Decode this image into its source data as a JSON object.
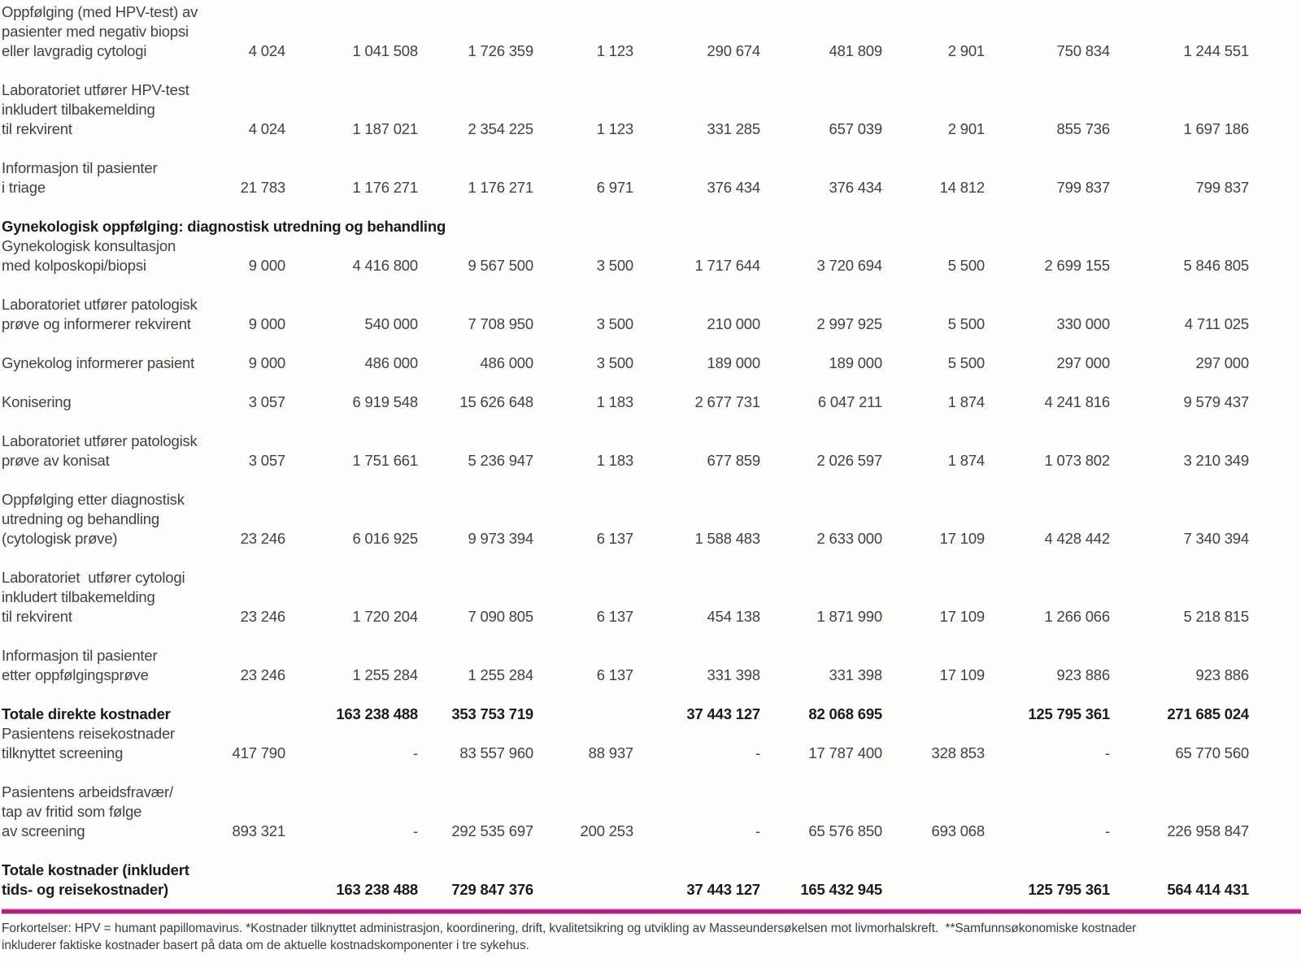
{
  "page": {
    "accent_color": "#ac1e80",
    "table": {
      "rows": [
        {
          "type": "data",
          "tight": true,
          "label": "Oppfølging (med HPV-test) av\npasienter med negativ biopsi\neller lavgradig cytologi",
          "values": [
            "4 024",
            "1 041 508",
            "1 726 359",
            "1 123",
            "290 674",
            "481 809",
            "2 901",
            "750 834",
            "1 244 551"
          ]
        },
        {
          "type": "data",
          "label": "Laboratoriet utfører HPV-test\ninkludert tilbakemelding\ntil rekvirent",
          "values": [
            "4 024",
            "1 187 021",
            "2 354 225",
            "1 123",
            "331 285",
            "657 039",
            "2 901",
            "855 736",
            "1 697 186"
          ]
        },
        {
          "type": "data",
          "label": "Informasjon til pasienter\ni triage",
          "values": [
            "21 783",
            "1 176 271",
            "1 176 271",
            "6 971",
            "376 434",
            "376 434",
            "14 812",
            "799 837",
            "799 837"
          ]
        },
        {
          "type": "section",
          "label": "Gynekologisk oppfølging: diagnostisk utredning og behandling"
        },
        {
          "type": "data",
          "tight": true,
          "label": "Gynekologisk konsultasjon\nmed kolposkopi/biopsi",
          "values": [
            "9 000",
            "4 416 800",
            "9 567 500",
            "3 500",
            "1 717 644",
            "3 720 694",
            "5 500",
            "2 699 155",
            "5 846 805"
          ]
        },
        {
          "type": "data",
          "label": "Laboratoriet utfører patologisk\nprøve og informerer rekvirent",
          "values": [
            "9 000",
            "540 000",
            "7 708 950",
            "3 500",
            "210 000",
            "2 997 925",
            "5 500",
            "330 000",
            "4 711 025"
          ]
        },
        {
          "type": "data",
          "label": "Gynekolog informerer pasient",
          "values": [
            "9 000",
            "486 000",
            "486 000",
            "3 500",
            "189 000",
            "189 000",
            "5 500",
            "297 000",
            "297 000"
          ]
        },
        {
          "type": "data",
          "label": "Konisering",
          "values": [
            "3 057",
            "6 919 548",
            "15 626 648",
            "1 183",
            "2 677 731",
            "6 047 211",
            "1 874",
            "4 241 816",
            "9 579 437"
          ]
        },
        {
          "type": "data",
          "label": "Laboratoriet utfører patologisk\nprøve av konisat",
          "values": [
            "3 057",
            "1 751 661",
            "5 236 947",
            "1 183",
            "677 859",
            "2 026 597",
            "1 874",
            "1 073 802",
            "3 210 349"
          ]
        },
        {
          "type": "data",
          "label": "Oppfølging etter diagnostisk\nutredning og behandling\n(cytologisk prøve)",
          "values": [
            "23 246",
            "6 016 925",
            "9 973 394",
            "6 137",
            "1 588 483",
            "2 633 000",
            "17 109",
            "4 428 442",
            "7 340 394"
          ]
        },
        {
          "type": "data",
          "label": "Laboratoriet  utfører cytologi\ninkludert tilbakemelding\ntil rekvirent",
          "values": [
            "23 246",
            "1 720 204",
            "7 090 805",
            "6 137",
            "454 138",
            "1 871 990",
            "17 109",
            "1 266 066",
            "5 218 815"
          ]
        },
        {
          "type": "data",
          "label": "Informasjon til pasienter\netter oppfølgingsprøve",
          "values": [
            "23 246",
            "1 255 284",
            "1 255 284",
            "6 137",
            "331 398",
            "331 398",
            "17 109",
            "923 886",
            "923 886"
          ]
        },
        {
          "type": "data",
          "bold": true,
          "label": "Totale direkte kostnader",
          "values": [
            "",
            "163 238 488",
            "353 753 719",
            "",
            "37 443 127",
            "82 068 695",
            "",
            "125 795 361",
            "271 685 024"
          ]
        },
        {
          "type": "data",
          "tight": true,
          "label": "Pasientens reisekostnader\ntilknyttet screening",
          "values": [
            "417 790",
            "-",
            "83 557 960",
            "88 937",
            "-",
            "17 787 400",
            "328 853",
            "-",
            "65 770 560"
          ]
        },
        {
          "type": "data",
          "label": "Pasientens arbeidsfravær/\ntap av fritid som følge\nav screening",
          "values": [
            "893 321",
            "-",
            "292 535 697",
            "200 253",
            "-",
            "65 576 850",
            "693 068",
            "-",
            "226 958 847"
          ]
        },
        {
          "type": "data",
          "bold": true,
          "label": "Totale kostnader (inkludert\ntids- og reisekostnader)",
          "values": [
            "",
            "163 238 488",
            "729 847 376",
            "",
            "37 443 127",
            "165 432 945",
            "",
            "125 795 361",
            "564 414 431"
          ]
        }
      ]
    },
    "footnote": "Forkortelser: HPV = humant papillomavirus. *Kostnader tilknyttet administrasjon, koordinering, drift, kvalitetsikring og utvikling av Masseundersøkelsen mot livmorhalskreft.  **Samfunnsøkonomiske kostnader\ninkluderer faktiske kostnader basert på data om de aktuelle kostnadskomponenter i tre sykehus."
  }
}
